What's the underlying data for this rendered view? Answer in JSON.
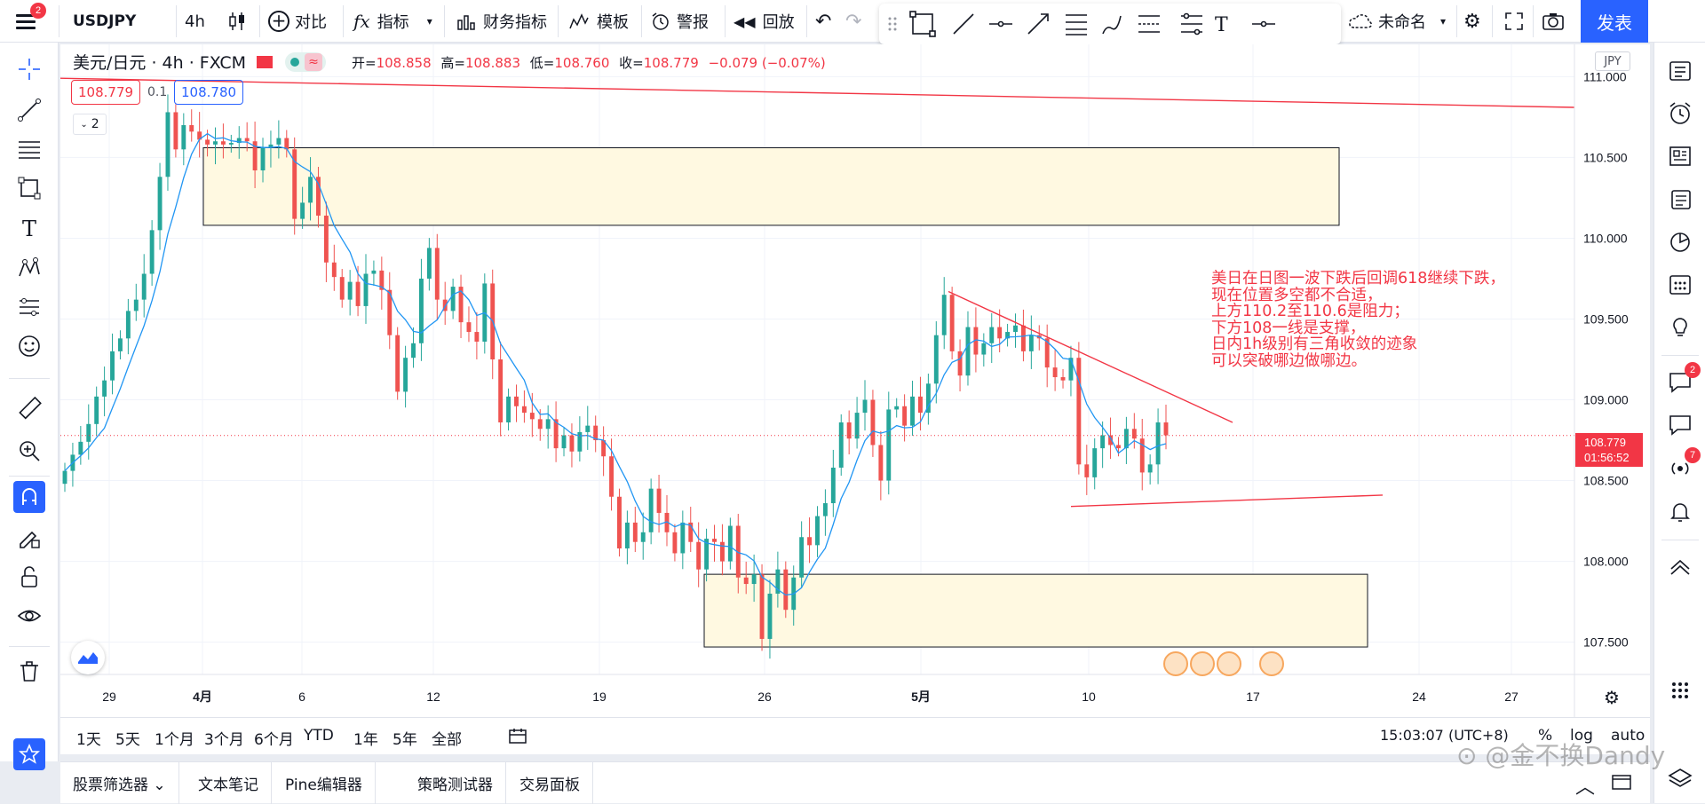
{
  "header": {
    "notifications_count": "2",
    "symbol": "USDJPY",
    "interval": "4h",
    "compare_label": "对比",
    "indicators_label": "指标",
    "financials_label": "财务指标",
    "templates_label": "模板",
    "alert_label": "警报",
    "replay_label": "回放",
    "layout_name": "未命名",
    "publish_label": "发表"
  },
  "chart": {
    "title": "美元/日元 · 4h · FXCM",
    "ohlc_open_label": "开=",
    "ohlc_open": "108.858",
    "ohlc_high_label": "高=",
    "ohlc_high": "108.883",
    "ohlc_low_label": "低=",
    "ohlc_low": "108.760",
    "ohlc_close_label": "收=",
    "ohlc_close": "108.779",
    "ohlc_change": "−0.079 (−0.07%)",
    "bid": "108.779",
    "spread": "0.1",
    "ask": "108.780",
    "indicator_collapse": "2",
    "currency": "JPY",
    "last_price": "108.779",
    "countdown": "01:56:52",
    "annotation": "美日在日图一波下跌后回调618继续下跌，\n现在位置多空都不合适，\n上方110.2至110.6是阻力；\n下方108一线是支撑，\n日内1h级别有三角收敛的迹象\n可以突破哪边做哪边。",
    "colors": {
      "up": "#26a69a",
      "down": "#ef5350",
      "ma": "#2196f3",
      "drawing": "#f23645",
      "zone_fill": "#fff9e1"
    }
  },
  "chart_data": {
    "type": "candlestick",
    "symbol": "USDJPY",
    "y_ticks": [
      "111.000",
      "110.500",
      "110.000",
      "109.500",
      "109.000",
      "108.500",
      "108.000",
      "107.500"
    ],
    "ylim": [
      107.3,
      111.2
    ],
    "x_ticks": [
      "29",
      "4月",
      "6",
      "12",
      "19",
      "26",
      "5月",
      "10",
      "17",
      "24",
      "27"
    ],
    "zones": [
      {
        "y_top": 110.56,
        "y_bottom": 110.08
      },
      {
        "y_top": 107.92,
        "y_bottom": 107.47
      }
    ],
    "trendlines": [
      {
        "from": 110.99,
        "to": 110.81
      },
      {
        "from": 109.67,
        "to": 108.86
      },
      {
        "from": 108.34,
        "to": 108.41
      }
    ],
    "candles_close": [
      108.56,
      108.66,
      108.74,
      108.85,
      109.02,
      109.12,
      109.3,
      109.38,
      109.55,
      109.62,
      109.78,
      110.05,
      110.38,
      110.78,
      110.55,
      110.7,
      110.66,
      110.61,
      110.58,
      110.6,
      110.58,
      110.59,
      110.62,
      110.6,
      110.42,
      110.56,
      110.58,
      110.62,
      110.55,
      110.12,
      110.22,
      110.38,
      110.14,
      109.85,
      109.76,
      109.62,
      109.73,
      109.58,
      109.78,
      109.8,
      109.68,
      109.4,
      109.05,
      109.26,
      109.35,
      109.75,
      109.94,
      109.62,
      109.55,
      109.7,
      109.48,
      109.42,
      109.36,
      109.72,
      109.25,
      108.86,
      109.02,
      108.96,
      108.92,
      108.88,
      108.82,
      108.88,
      108.7,
      108.78,
      108.68,
      108.8,
      108.84,
      108.75,
      108.65,
      108.4,
      108.08,
      108.24,
      108.12,
      108.18,
      108.45,
      108.3,
      108.18,
      108.05,
      108.24,
      108.12,
      107.95,
      108.14,
      108.12,
      108.0,
      108.22,
      107.9,
      107.86,
      107.92,
      107.52,
      107.8,
      107.95,
      107.7,
      107.9,
      108.15,
      108.1,
      108.28,
      108.36,
      108.58,
      108.86,
      108.76,
      108.92,
      109.0,
      108.72,
      108.5,
      108.94,
      108.96,
      108.84,
      109.02,
      108.92,
      109.1,
      109.4,
      109.65,
      109.3,
      109.15,
      109.45,
      109.28,
      109.35,
      109.45,
      109.38,
      109.42,
      109.46,
      109.3,
      109.4,
      109.38,
      109.2,
      109.14,
      109.12,
      109.26,
      108.6,
      108.52,
      108.7,
      108.78,
      108.72,
      108.7,
      108.82,
      108.76,
      108.55,
      108.6,
      108.86,
      108.78
    ]
  },
  "time_axis": {
    "ranges": [
      "1天",
      "5天",
      "1个月",
      "3个月",
      "6个月",
      "YTD",
      "1年",
      "5年",
      "全部"
    ],
    "clock": "15:03:07 (UTC+8)",
    "percent_label": "%",
    "log_label": "log",
    "auto_label": "auto"
  },
  "panels": {
    "tabs": [
      "股票筛选器",
      "文本笔记",
      "Pine编辑器",
      "策略测试器",
      "交易面板"
    ]
  },
  "right_sidebar": {
    "chat_badge": "2",
    "stream_badge": "7"
  },
  "watermark": "⊙ @金不换Dandy"
}
